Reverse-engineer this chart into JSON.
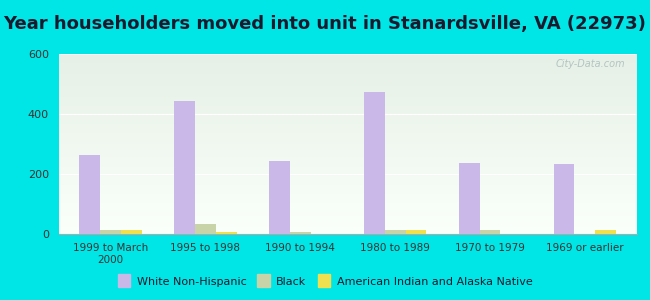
{
  "title": "Year householders moved into unit in Stanardsville, VA (22973)",
  "categories": [
    "1999 to March\n2000",
    "1995 to 1998",
    "1990 to 1994",
    "1980 to 1989",
    "1970 to 1979",
    "1969 or earlier"
  ],
  "white_non_hispanic": [
    263,
    443,
    243,
    475,
    238,
    233
  ],
  "black": [
    12,
    35,
    8,
    15,
    12,
    0
  ],
  "american_indian": [
    14,
    8,
    0,
    14,
    0,
    14
  ],
  "white_color": "#c9b8e8",
  "black_color": "#c8d4a8",
  "american_indian_color": "#f0e050",
  "ylim": [
    0,
    600
  ],
  "yticks": [
    0,
    200,
    400,
    600
  ],
  "background_color": "#00e5e5",
  "title_fontsize": 13,
  "bar_width": 0.22,
  "watermark": "City-Data.com",
  "legend_labels": [
    "White Non-Hispanic",
    "Black",
    "American Indian and Alaska Native"
  ]
}
